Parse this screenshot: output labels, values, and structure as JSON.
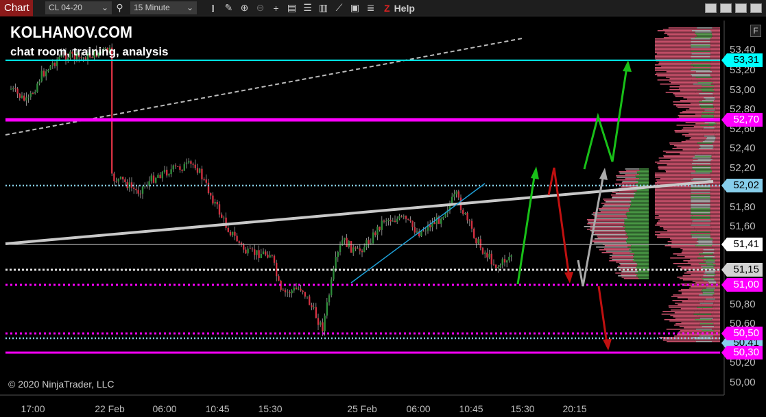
{
  "toolbar": {
    "tab": "Chart",
    "instrument": "CL 04-20",
    "interval": "15 Minute",
    "help": "Help",
    "z_logo": "Z",
    "icons": [
      "search-icon",
      "bar-type-icon",
      "drawing-tools-icon",
      "zoom-in-icon",
      "zoom-out-icon",
      "crosshair-icon",
      "data-box-icon",
      "properties-icon",
      "indicators-icon",
      "strategies-icon",
      "templates-icon",
      "list-icon"
    ]
  },
  "chart": {
    "brand": "KOLHANOV.COM",
    "tagline": "chat room, training, analysis",
    "copyright": "© 2020 NinjaTrader, LLC",
    "f_button": "F",
    "y_ticks": [
      "53,40",
      "53,20",
      "53,00",
      "52,80",
      "52,60",
      "52,40",
      "52,20",
      "51,80",
      "51,60",
      "50,80",
      "50,60",
      "50,20",
      "50,00"
    ],
    "x_ticks": [
      "17:00",
      "22 Feb",
      "06:00",
      "10:45",
      "15:30",
      "25 Feb",
      "06:00",
      "10:45",
      "15:30",
      "20:15"
    ],
    "price_labels": [
      {
        "value": "53,31",
        "bg": "#00ffff",
        "fg": "#000"
      },
      {
        "value": "52,70",
        "bg": "#ff00ff",
        "fg": "#fff"
      },
      {
        "value": "52,02",
        "bg": "#87ceeb",
        "fg": "#000"
      },
      {
        "value": "51,41",
        "bg": "#ffffff",
        "fg": "#000"
      },
      {
        "value": "51,15",
        "bg": "#d3d3d3",
        "fg": "#000"
      },
      {
        "value": "51,00",
        "bg": "#ff00ff",
        "fg": "#fff"
      },
      {
        "value": "50,41",
        "bg": "#87ceeb",
        "fg": "#000"
      },
      {
        "value": "50,50",
        "bg": "#ff00ff",
        "fg": "#fff"
      },
      {
        "value": "50,30",
        "bg": "#ff00ff",
        "fg": "#fff"
      }
    ],
    "colors": {
      "up": "#2e8b3a",
      "down": "#d03040",
      "magenta": "#ff00ff",
      "cyan": "#00e5e5",
      "skyblue": "#87ceeb"
    }
  }
}
